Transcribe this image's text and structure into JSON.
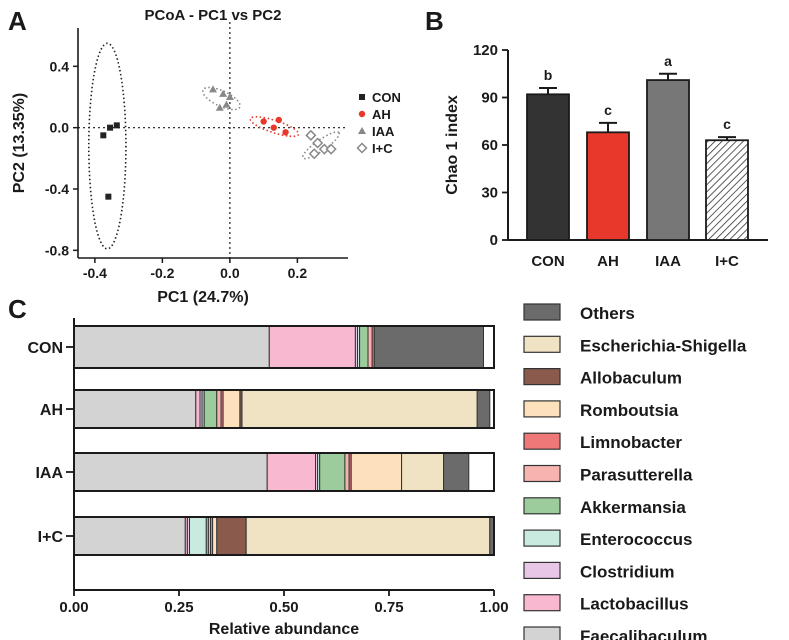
{
  "panel_labels": [
    "A",
    "B",
    "C"
  ],
  "chart_data": [
    {
      "type": "scatter",
      "title": "PCoA - PC1 vs PC2",
      "xlabel": "PC1 (24.7%)",
      "ylabel": "PC2 (13.35%)",
      "xlim": [
        -0.45,
        0.35
      ],
      "ylim": [
        -0.85,
        0.65
      ],
      "xticks": [
        -0.4,
        -0.2,
        0.0,
        0.2
      ],
      "xtick_labels": [
        "-0.4",
        "-0.2",
        "0.0",
        "0.2"
      ],
      "yticks": [
        0.4,
        0.0,
        -0.4,
        -0.8
      ],
      "ytick_labels": [
        "0.4",
        "0.0",
        "-0.4",
        "-0.8"
      ],
      "series": [
        {
          "name": "CON",
          "marker": "square",
          "color": "#222222",
          "points": [
            [
              -0.375,
              -0.05
            ],
            [
              -0.355,
              0.0
            ],
            [
              -0.335,
              0.015
            ],
            [
              -0.36,
              -0.45
            ]
          ],
          "ellipse": {
            "cx": -0.363,
            "cy": -0.12,
            "rx": 0.055,
            "ry": 0.67,
            "angle": 0,
            "color": "#222222"
          }
        },
        {
          "name": "AH",
          "marker": "circle",
          "color": "#e8382b",
          "points": [
            [
              0.1,
              0.04
            ],
            [
              0.13,
              0.0
            ],
            [
              0.165,
              -0.03
            ],
            [
              0.145,
              0.05
            ]
          ],
          "ellipse": {
            "cx": 0.132,
            "cy": 0.007,
            "rx": 0.075,
            "ry": 0.04,
            "angle": 18,
            "color": "#e8382b"
          }
        },
        {
          "name": "IAA",
          "marker": "triangle",
          "color": "#888888",
          "points": [
            [
              -0.05,
              0.25
            ],
            [
              -0.02,
              0.22
            ],
            [
              0.0,
              0.2
            ],
            [
              -0.03,
              0.13
            ],
            [
              -0.01,
              0.15
            ]
          ],
          "ellipse": {
            "cx": -0.025,
            "cy": 0.19,
            "rx": 0.06,
            "ry": 0.05,
            "angle": 25,
            "color": "#888888"
          }
        },
        {
          "name": "I+C",
          "marker": "diamond-open",
          "color": "#888888",
          "points": [
            [
              0.24,
              -0.05
            ],
            [
              0.26,
              -0.1
            ],
            [
              0.28,
              -0.14
            ],
            [
              0.3,
              -0.14
            ],
            [
              0.25,
              -0.17
            ]
          ],
          "ellipse": {
            "cx": 0.27,
            "cy": -0.115,
            "rx": 0.065,
            "ry": 0.035,
            "angle": -35,
            "color": "#888888"
          }
        }
      ],
      "legend": [
        "CON",
        "AH",
        "IAA",
        "I+C"
      ],
      "legend_position": "right"
    },
    {
      "type": "bar",
      "ylabel": "Chao 1 index",
      "ylim": [
        0,
        120
      ],
      "yticks": [
        0,
        30,
        60,
        90,
        120
      ],
      "categories": [
        "CON",
        "AH",
        "IAA",
        "I+C"
      ],
      "values": [
        92,
        68,
        101,
        63
      ],
      "errors": [
        4,
        6,
        4,
        2
      ],
      "significance": [
        "b",
        "c",
        "a",
        "c"
      ],
      "colors": [
        "#333333",
        "#e8382b",
        "#777777",
        "hatch"
      ]
    },
    {
      "type": "bar",
      "orientation": "horizontal",
      "stacked": true,
      "xlabel": "Relative abundance",
      "xlim": [
        0,
        1
      ],
      "xticks": [
        0,
        0.25,
        0.5,
        0.75,
        1.0
      ],
      "xtick_labels": [
        "0.00",
        "0.25",
        "0.50",
        "0.75",
        "1.00"
      ],
      "categories": [
        "CON",
        "AH",
        "IAA",
        "I+C"
      ],
      "series": [
        {
          "name": "Faecalibaculum",
          "color": "#d3d3d3",
          "values": [
            0.465,
            0.29,
            0.46,
            0.265
          ]
        },
        {
          "name": "Lactobacillus",
          "color": "#f7b8d0",
          "values": [
            0.205,
            0.01,
            0.115,
            0.005
          ]
        },
        {
          "name": "Clostridium",
          "color": "#e8c6e8",
          "values": [
            0.005,
            0.005,
            0.005,
            0.005
          ]
        },
        {
          "name": "Enterococcus",
          "color": "#c8eadf",
          "values": [
            0.005,
            0.005,
            0.005,
            0.04
          ]
        },
        {
          "name": "Akkermansia",
          "color": "#9ccc9c",
          "values": [
            0.02,
            0.03,
            0.06,
            0.005
          ]
        },
        {
          "name": "Parasutterella",
          "color": "#f7b3ae",
          "values": [
            0.01,
            0.01,
            0.01,
            0.005
          ]
        },
        {
          "name": "Limnobacter",
          "color": "#ee7777",
          "values": [
            0.005,
            0.005,
            0.005,
            0.005
          ]
        },
        {
          "name": "Romboutsia",
          "color": "#fde0bc",
          "values": [
            0.0,
            0.04,
            0.12,
            0.01
          ]
        },
        {
          "name": "Allobaculum",
          "color": "#8a5a4c",
          "values": [
            0.0,
            0.005,
            0.0,
            0.07
          ]
        },
        {
          "name": "Escherichia-Shigella",
          "color": "#efe3c3",
          "values": [
            0.0,
            0.56,
            0.1,
            0.58
          ]
        },
        {
          "name": "Others",
          "color": "#6b6b6b",
          "values": [
            0.26,
            0.03,
            0.06,
            0.01
          ]
        }
      ],
      "legend": [
        "Others",
        "Escherichia-Shigella",
        "Allobaculum",
        "Romboutsia",
        "Limnobacter",
        "Parasutterella",
        "Akkermansia",
        "Enterococcus",
        "Clostridium",
        "Lactobacillus",
        "Faecalibaculum"
      ],
      "legend_position": "right"
    }
  ]
}
